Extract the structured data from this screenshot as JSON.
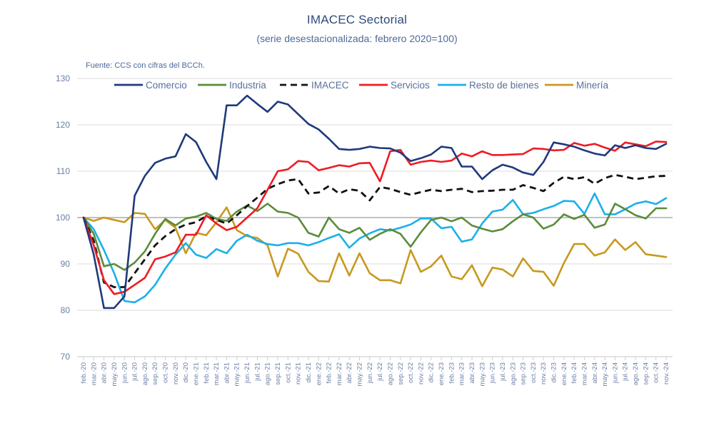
{
  "chart_data": {
    "type": "line",
    "title": "IMACEC  Sectorial",
    "subtitle": "(serie desestacionalizada: febrero 2020=100)",
    "source": "Fuente: CCS con cifras del BCCh.",
    "xlabel": "",
    "ylabel": "",
    "ylim": [
      70,
      130
    ],
    "yticks": [
      70,
      80,
      90,
      100,
      110,
      120,
      130
    ],
    "grid": true,
    "legend_position": "top",
    "x": [
      "feb.-20",
      "mar.-20",
      "abr.-20",
      "may.-20",
      "jun.-20",
      "jul.-20",
      "ago.-20",
      "sep.-20",
      "oct.-20",
      "nov.-20",
      "dic.-20",
      "ene.-21",
      "feb.-21",
      "mar.-21",
      "abr.-21",
      "may.-21",
      "jun.-21",
      "jul.-21",
      "ago.-21",
      "sep.-21",
      "oct.-21",
      "nov.-21",
      "dic.-21",
      "ene.-22",
      "feb.-22",
      "mar.-22",
      "abr.-22",
      "may.-22",
      "jun.-22",
      "jul.-22",
      "ago.-22",
      "sep.-22",
      "oct.-22",
      "nov.-22",
      "dic.-22",
      "ene.-23",
      "feb.-23",
      "mar.-23",
      "abr.-23",
      "may.-23",
      "jun.-23",
      "jul.-23",
      "ago.-23",
      "sep.-23",
      "oct.-23",
      "nov.-23",
      "dic.-23",
      "ene.-24",
      "feb.-24",
      "mar.-24",
      "abr.-24",
      "may.-24",
      "jun.-24",
      "jul.-24",
      "ago.-24",
      "sep.-24",
      "oct.-24",
      "nov.-24"
    ],
    "series": [
      {
        "name": "Comercio",
        "color": "#1f3a7a",
        "dashed": false,
        "values": [
          100,
          92,
          80.5,
          80.5,
          83,
          104.7,
          109,
          111.8,
          112.7,
          113.2,
          118,
          116.3,
          112,
          108.3,
          124.2,
          124.2,
          126.3,
          124.5,
          122.8,
          125,
          124.4,
          122.3,
          120.2,
          119,
          117,
          114.8,
          114.6,
          114.8,
          115.3,
          115,
          114.9,
          114,
          112.2,
          112.8,
          113.6,
          115.3,
          115,
          111,
          111,
          108.3,
          110.2,
          111.4,
          110.8,
          109.7,
          109.2,
          112,
          116.2,
          115.8,
          115.3,
          114.5,
          113.8,
          113.4,
          115.6,
          115,
          115.6,
          115,
          114.8,
          115.9
        ]
      },
      {
        "name": "Industria",
        "color": "#5b8c3a",
        "dashed": false,
        "values": [
          100,
          96.5,
          89.5,
          90,
          88.7,
          90.3,
          92.7,
          96.5,
          99.7,
          98.3,
          99.8,
          100.2,
          101,
          99.7,
          99.3,
          101.3,
          102.6,
          101.4,
          103,
          101.3,
          101,
          100,
          96.7,
          95.9,
          100,
          97.5,
          96.7,
          97.8,
          95.2,
          96.5,
          97.5,
          96.5,
          93.7,
          96.8,
          99.5,
          100,
          99.2,
          100,
          98.3,
          97.6,
          97,
          97.5,
          99.2,
          100.7,
          100,
          97.6,
          98.5,
          100.7,
          99.7,
          100.6,
          97.8,
          98.5,
          103,
          101.8,
          100.5,
          99.8,
          102,
          102
        ]
      },
      {
        "name": "IMACEC",
        "color": "#111111",
        "dashed": true,
        "values": [
          100,
          95,
          86,
          85,
          85,
          88,
          91,
          94,
          96,
          97.5,
          98.5,
          99,
          100.3,
          99.5,
          98.7,
          100.5,
          102.5,
          104.3,
          106.2,
          107.2,
          108,
          108.3,
          105.2,
          105.4,
          106.8,
          105.2,
          106.1,
          105.8,
          103.7,
          106.6,
          106.2,
          105.5,
          104.9,
          105.5,
          106,
          105.7,
          106,
          106.2,
          105.5,
          105.7,
          105.8,
          106,
          106,
          107,
          106.4,
          105.7,
          107.5,
          108.8,
          108.3,
          108.7,
          107.3,
          108.5,
          109.2,
          108.8,
          108.3,
          108.6,
          108.9,
          109
        ]
      },
      {
        "name": "Servicios",
        "color": "#ee1c24",
        "dashed": false,
        "values": [
          100,
          94,
          86.5,
          83.5,
          84,
          85.5,
          87,
          91,
          91.6,
          92.5,
          96.3,
          96.3,
          100.5,
          98.7,
          97.3,
          98,
          100,
          102,
          106,
          110,
          110.4,
          112.2,
          112,
          110.2,
          110.7,
          111.3,
          111,
          111.7,
          111.8,
          107.8,
          114.3,
          114.6,
          111.4,
          112,
          112.3,
          112,
          112.3,
          113.8,
          113.2,
          114.3,
          113.5,
          113.5,
          113.6,
          113.7,
          114.9,
          114.8,
          114.5,
          114.6,
          116.1,
          115.5,
          115.9,
          115.1,
          114.4,
          116.2,
          115.8,
          115.4,
          116.4,
          116.3
        ]
      },
      {
        "name": "Resto de bienes",
        "color": "#1ab0ea",
        "dashed": false,
        "values": [
          100,
          97.5,
          93,
          88,
          82,
          81.7,
          83,
          85.5,
          89,
          92,
          94.5,
          92,
          91.3,
          93.2,
          92.3,
          95,
          96.3,
          95,
          94.3,
          94,
          94.5,
          94.5,
          94,
          94.7,
          95.6,
          96.4,
          93.5,
          95.5,
          96.6,
          97.5,
          97.2,
          97.8,
          98.5,
          99.8,
          99.8,
          97.7,
          98,
          94.8,
          95.3,
          98.7,
          101.3,
          101.7,
          103.8,
          100.7,
          101,
          101.8,
          102.5,
          103.6,
          103.5,
          100.8,
          105.2,
          100.7,
          100.7,
          101.8,
          103,
          103.5,
          102.9,
          104.2
        ]
      },
      {
        "name": "Minería",
        "color": "#c8991f",
        "dashed": false,
        "values": [
          100,
          99.3,
          100,
          99.5,
          99,
          101,
          100.8,
          97.5,
          99.5,
          97.8,
          92.3,
          96.7,
          96.2,
          99,
          102.2,
          97.3,
          96,
          95.6,
          94,
          87.3,
          93.3,
          92.2,
          88.3,
          86.3,
          86.2,
          92.3,
          87.5,
          92.3,
          88,
          86.5,
          86.5,
          85.8,
          93,
          88.3,
          89.5,
          91.8,
          87.3,
          86.7,
          89.7,
          85.2,
          89.2,
          88.8,
          87.3,
          91.2,
          88.5,
          88.3,
          85.3,
          90.2,
          94.3,
          94.3,
          91.8,
          92.5,
          95.3,
          93,
          94.7,
          92.1,
          91.8,
          91.5
        ]
      }
    ]
  }
}
